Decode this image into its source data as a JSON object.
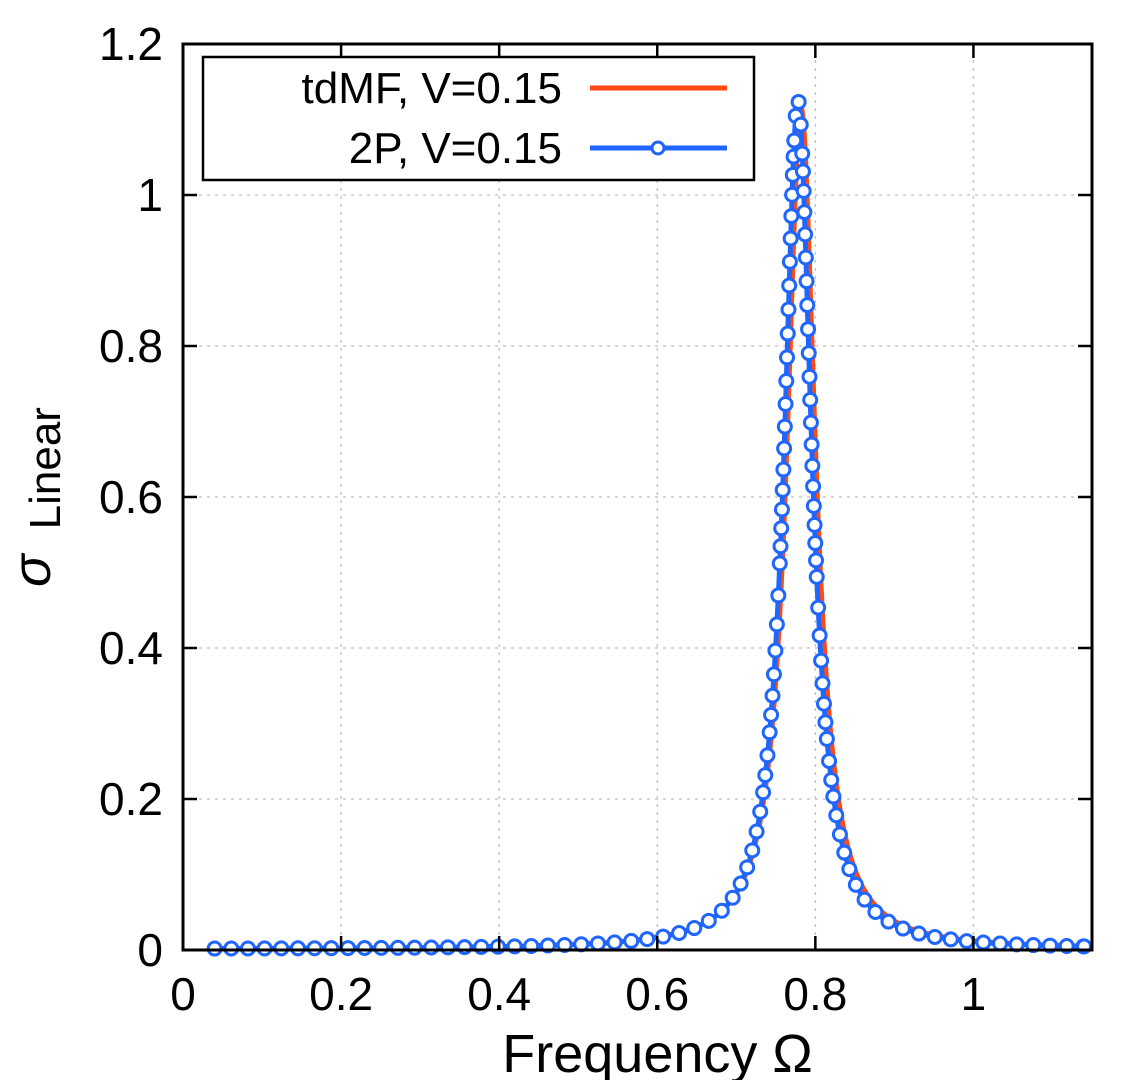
{
  "chart_data": {
    "type": "line",
    "title": "",
    "xlabel": "Frequency  Ω",
    "ylabel_symbol": "σ",
    "ylabel_subscript": "Linear",
    "xlim": [
      0,
      1.15
    ],
    "ylim": [
      0,
      1.2
    ],
    "xticks": [
      0,
      0.2,
      0.4,
      0.6,
      0.8,
      1
    ],
    "xtick_labels": [
      "0",
      "0.2",
      "0.4",
      "0.6",
      "0.8",
      "1"
    ],
    "yticks": [
      0,
      0.2,
      0.4,
      0.6,
      0.8,
      1,
      1.2
    ],
    "ytick_labels": [
      "0",
      "0.2",
      "0.4",
      "0.6",
      "0.8",
      "1",
      "1.2"
    ],
    "grid": true,
    "legend_position": "top-left",
    "series": [
      {
        "name": "tdMF, V=0.15",
        "color": "#ff4a12",
        "marker": "none",
        "peak_x": 0.782,
        "peak_y": 1.115,
        "gamma": 0.022,
        "baseline": 0.001,
        "x_range": [
          0.04,
          1.14
        ]
      },
      {
        "name": "2P, V=0.15",
        "color": "#1f66ff",
        "marker": "circle",
        "peak_x": 0.778,
        "peak_y": 1.125,
        "gamma": 0.021,
        "baseline": 0.001,
        "x_range": [
          0.04,
          1.14
        ]
      }
    ]
  }
}
